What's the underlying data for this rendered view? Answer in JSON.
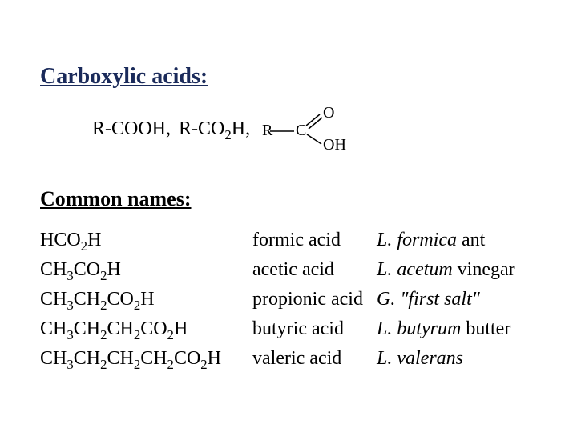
{
  "title": "Carboxylic acids:",
  "general_formulas": {
    "text1": "R-COOH,",
    "text2_prefix": "R-CO",
    "text2_sub": "2",
    "text2_suffix": "H,"
  },
  "structure_diagram": {
    "r_label": "R",
    "c_label": "C",
    "o_label": "O",
    "oh_label": "OH",
    "stroke": "#000000"
  },
  "section_header": "Common names:",
  "acids": [
    {
      "formula_parts": [
        "HCO",
        "2",
        "H"
      ],
      "name": "formic acid",
      "origin_italic": "L. formica",
      "origin_plain": " ant"
    },
    {
      "formula_parts": [
        "CH",
        "3",
        "CO",
        "2",
        "H"
      ],
      "name": "acetic acid",
      "origin_italic": "L. acetum",
      "origin_plain": " vinegar"
    },
    {
      "formula_parts": [
        "CH",
        "3",
        "CH",
        "2",
        "CO",
        "2",
        "H"
      ],
      "name": "propionic acid",
      "origin_italic": "G. \"first salt\"",
      "origin_plain": ""
    },
    {
      "formula_parts": [
        "CH",
        "3",
        "CH",
        "2",
        "CH",
        "2",
        "CO",
        "2",
        "H"
      ],
      "name": "butyric acid",
      "origin_italic": "L. butyrum",
      "origin_plain": " butter"
    },
    {
      "formula_parts": [
        "CH",
        "3",
        "CH",
        "2",
        "CH",
        "2",
        "CH",
        "2",
        "CO",
        "2",
        "H"
      ],
      "name": "valeric acid",
      "origin_italic": "L. valerans",
      "origin_plain": ""
    }
  ],
  "colors": {
    "title_color": "#1a2a5a",
    "text_color": "#000000",
    "background": "#ffffff"
  },
  "fonts": {
    "title_fontsize": 28,
    "body_fontsize": 24
  }
}
